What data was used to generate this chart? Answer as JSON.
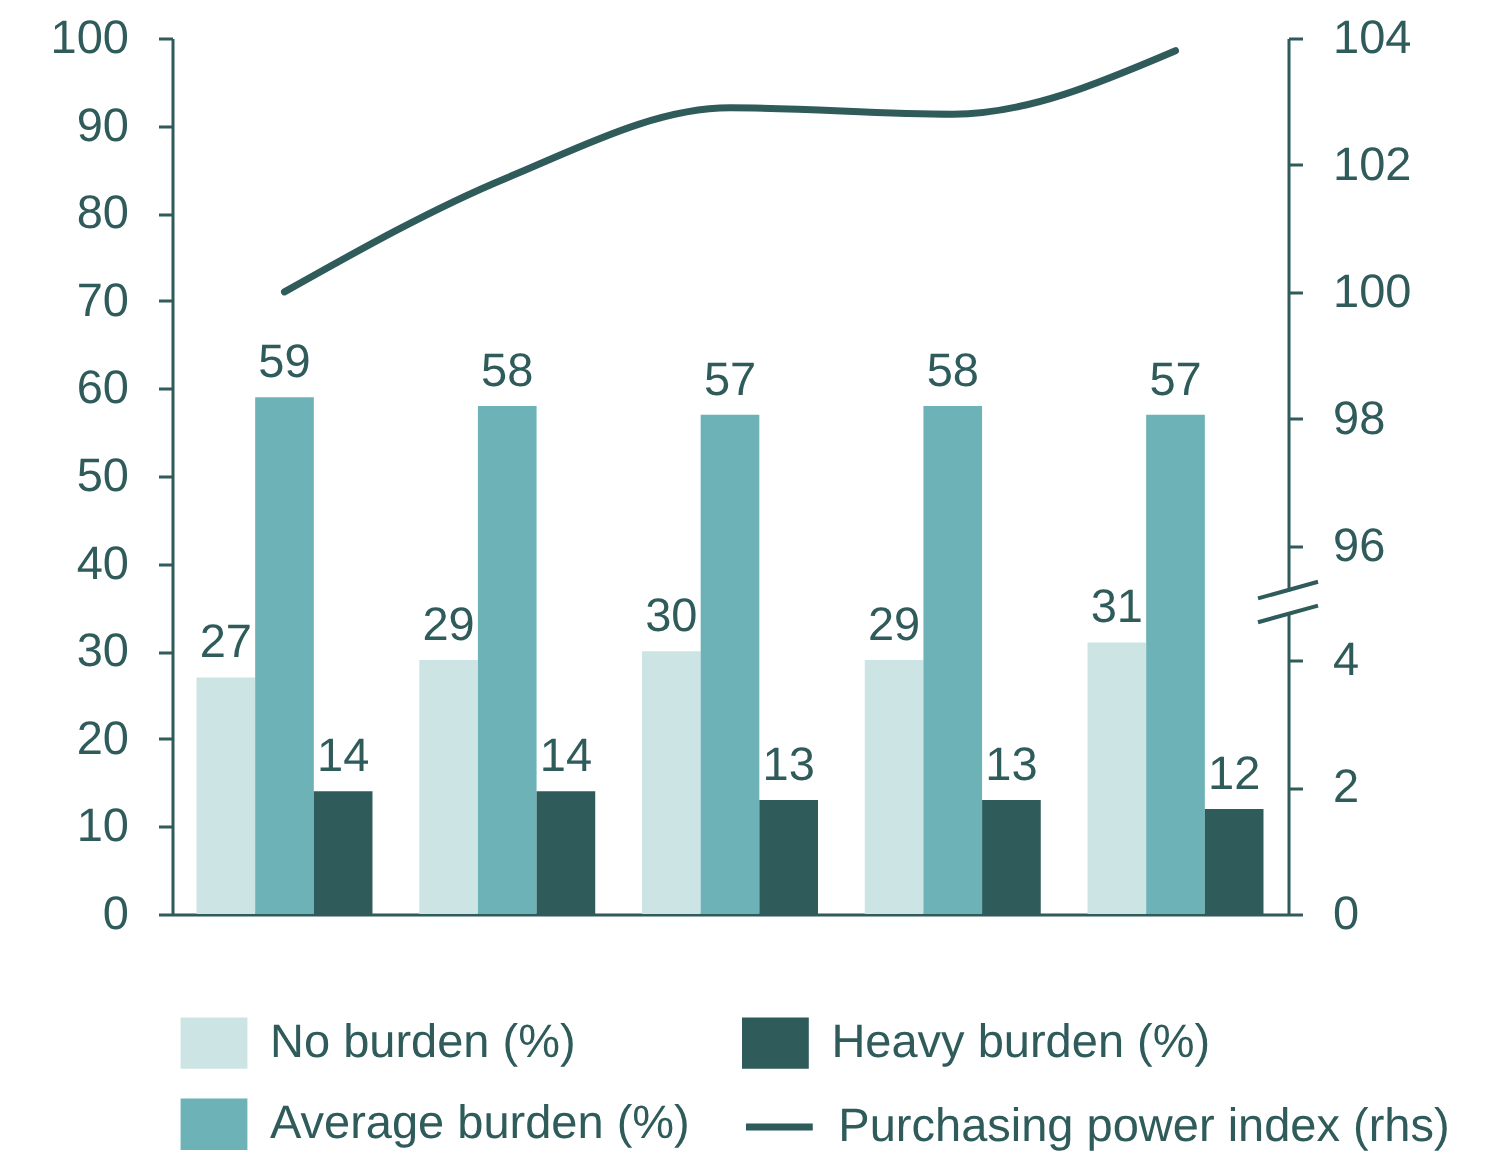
{
  "chart_data": {
    "type": "bar",
    "categories": [
      null,
      null,
      null,
      null,
      null
    ],
    "series": [
      {
        "name": "No burden (%)",
        "color": "#cde4e5",
        "values": [
          27,
          29,
          30,
          29,
          31
        ],
        "value_labels": [
          "27",
          "29",
          "30",
          "29",
          "31"
        ]
      },
      {
        "name": "Average burden (%)",
        "color": "#6db2b7",
        "values": [
          59,
          58,
          57,
          58,
          57
        ],
        "value_labels": [
          "59",
          "58",
          "57",
          "58",
          "57"
        ]
      },
      {
        "name": "Heavy burden (%)",
        "color": "#2f5b5b",
        "values": [
          14,
          14,
          13,
          13,
          12
        ],
        "value_labels": [
          "14",
          "14",
          "13",
          "13",
          "12"
        ]
      },
      {
        "name": "Purchasing power index (rhs)",
        "type": "line",
        "axis": "y2",
        "color": "#2f5b5b",
        "values": [
          100.0,
          101.8,
          102.9,
          102.8,
          103.8
        ]
      }
    ],
    "ylim": [
      0,
      100
    ],
    "yticks": [
      0,
      10,
      20,
      30,
      40,
      50,
      60,
      70,
      80,
      90,
      100
    ],
    "y2lim": [
      90.2,
      104
    ],
    "y2ticks": [
      96,
      98,
      100,
      102,
      104
    ],
    "y3lim": [
      0,
      13.8
    ],
    "y3ticks": [
      0,
      2,
      4
    ],
    "legend": "bottom"
  }
}
